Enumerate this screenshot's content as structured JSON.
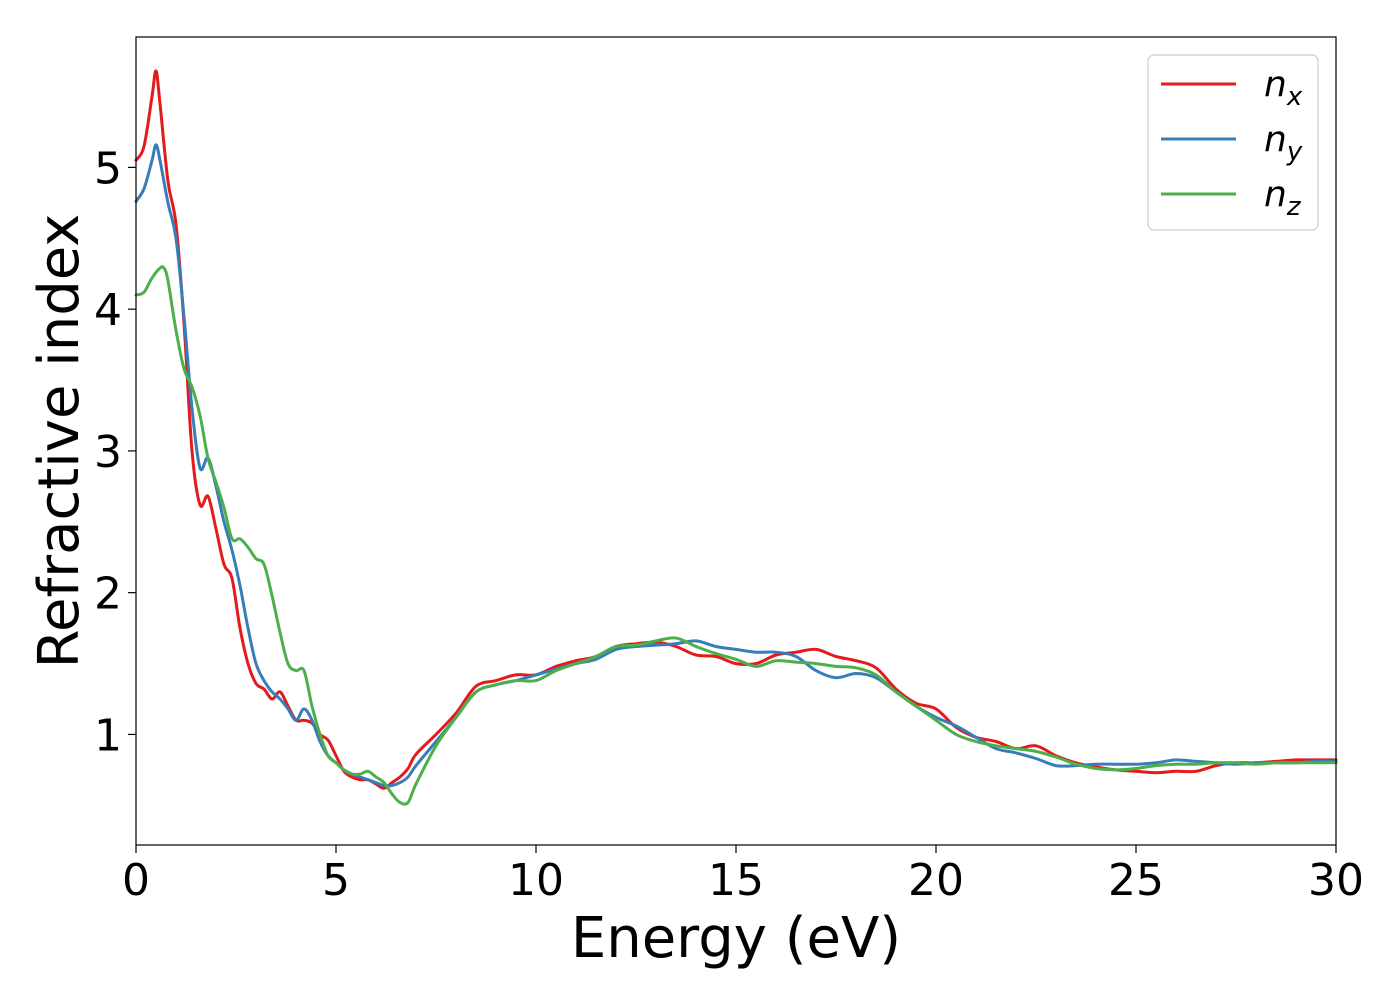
{
  "chart_data": {
    "type": "line",
    "xlabel": "Energy (eV)",
    "ylabel": "Refractive index",
    "xlim": [
      0,
      30
    ],
    "ylim": [
      0.22,
      5.92
    ],
    "xticks": [
      0,
      5,
      10,
      15,
      20,
      25,
      30
    ],
    "yticks": [
      1,
      2,
      3,
      4,
      5
    ],
    "grid": false,
    "legend": "top-right",
    "series": [
      {
        "name": "n_x",
        "label_base": "n",
        "label_sub": "x",
        "color": "#e41a1c",
        "points": [
          [
            0,
            5.05
          ],
          [
            0.2,
            5.15
          ],
          [
            0.4,
            5.5
          ],
          [
            0.5,
            5.68
          ],
          [
            0.6,
            5.45
          ],
          [
            0.8,
            4.9
          ],
          [
            1.0,
            4.6
          ],
          [
            1.2,
            3.9
          ],
          [
            1.4,
            3.0
          ],
          [
            1.6,
            2.62
          ],
          [
            1.8,
            2.68
          ],
          [
            2.0,
            2.45
          ],
          [
            2.2,
            2.2
          ],
          [
            2.4,
            2.1
          ],
          [
            2.6,
            1.75
          ],
          [
            2.8,
            1.5
          ],
          [
            3.0,
            1.36
          ],
          [
            3.2,
            1.32
          ],
          [
            3.4,
            1.25
          ],
          [
            3.6,
            1.3
          ],
          [
            3.8,
            1.2
          ],
          [
            4.0,
            1.1
          ],
          [
            4.2,
            1.1
          ],
          [
            4.4,
            1.08
          ],
          [
            4.6,
            1.0
          ],
          [
            4.8,
            0.96
          ],
          [
            5.0,
            0.85
          ],
          [
            5.2,
            0.74
          ],
          [
            5.4,
            0.7
          ],
          [
            5.6,
            0.68
          ],
          [
            5.8,
            0.68
          ],
          [
            6.0,
            0.65
          ],
          [
            6.2,
            0.62
          ],
          [
            6.4,
            0.66
          ],
          [
            6.6,
            0.7
          ],
          [
            6.8,
            0.76
          ],
          [
            7.0,
            0.86
          ],
          [
            7.5,
            1.0
          ],
          [
            8.0,
            1.15
          ],
          [
            8.5,
            1.34
          ],
          [
            9.0,
            1.38
          ],
          [
            9.5,
            1.42
          ],
          [
            10.0,
            1.42
          ],
          [
            10.5,
            1.48
          ],
          [
            11.0,
            1.52
          ],
          [
            11.5,
            1.55
          ],
          [
            12.0,
            1.62
          ],
          [
            12.5,
            1.64
          ],
          [
            13.0,
            1.65
          ],
          [
            13.5,
            1.62
          ],
          [
            14.0,
            1.56
          ],
          [
            14.5,
            1.55
          ],
          [
            15.0,
            1.5
          ],
          [
            15.5,
            1.5
          ],
          [
            16.0,
            1.56
          ],
          [
            16.5,
            1.58
          ],
          [
            17.0,
            1.6
          ],
          [
            17.5,
            1.55
          ],
          [
            18.0,
            1.52
          ],
          [
            18.5,
            1.47
          ],
          [
            19.0,
            1.32
          ],
          [
            19.5,
            1.22
          ],
          [
            20.0,
            1.18
          ],
          [
            20.5,
            1.05
          ],
          [
            21.0,
            0.98
          ],
          [
            21.5,
            0.95
          ],
          [
            22.0,
            0.9
          ],
          [
            22.5,
            0.92
          ],
          [
            23.0,
            0.85
          ],
          [
            23.5,
            0.8
          ],
          [
            24.0,
            0.77
          ],
          [
            24.5,
            0.75
          ],
          [
            25.0,
            0.74
          ],
          [
            25.5,
            0.73
          ],
          [
            26.0,
            0.74
          ],
          [
            26.5,
            0.74
          ],
          [
            27.0,
            0.78
          ],
          [
            27.5,
            0.8
          ],
          [
            28.0,
            0.8
          ],
          [
            28.5,
            0.81
          ],
          [
            29.0,
            0.82
          ],
          [
            29.5,
            0.82
          ],
          [
            30.0,
            0.82
          ]
        ]
      },
      {
        "name": "n_y",
        "label_base": "n",
        "label_sub": "y",
        "color": "#377eb8",
        "points": [
          [
            0,
            4.76
          ],
          [
            0.2,
            4.85
          ],
          [
            0.4,
            5.05
          ],
          [
            0.5,
            5.16
          ],
          [
            0.6,
            5.05
          ],
          [
            0.8,
            4.75
          ],
          [
            1.0,
            4.5
          ],
          [
            1.2,
            3.95
          ],
          [
            1.4,
            3.3
          ],
          [
            1.6,
            2.88
          ],
          [
            1.8,
            2.95
          ],
          [
            2.0,
            2.75
          ],
          [
            2.2,
            2.5
          ],
          [
            2.4,
            2.3
          ],
          [
            2.6,
            2.05
          ],
          [
            2.8,
            1.75
          ],
          [
            3.0,
            1.5
          ],
          [
            3.2,
            1.38
          ],
          [
            3.4,
            1.3
          ],
          [
            3.6,
            1.25
          ],
          [
            3.8,
            1.18
          ],
          [
            4.0,
            1.1
          ],
          [
            4.2,
            1.18
          ],
          [
            4.4,
            1.1
          ],
          [
            4.6,
            0.95
          ],
          [
            4.8,
            0.85
          ],
          [
            5.0,
            0.8
          ],
          [
            5.2,
            0.75
          ],
          [
            5.4,
            0.72
          ],
          [
            5.6,
            0.7
          ],
          [
            5.8,
            0.68
          ],
          [
            6.0,
            0.66
          ],
          [
            6.2,
            0.64
          ],
          [
            6.4,
            0.64
          ],
          [
            6.6,
            0.66
          ],
          [
            6.8,
            0.7
          ],
          [
            7.0,
            0.78
          ],
          [
            7.5,
            0.95
          ],
          [
            8.0,
            1.12
          ],
          [
            8.5,
            1.3
          ],
          [
            9.0,
            1.35
          ],
          [
            9.5,
            1.38
          ],
          [
            10.0,
            1.42
          ],
          [
            10.5,
            1.46
          ],
          [
            11.0,
            1.5
          ],
          [
            11.5,
            1.53
          ],
          [
            12.0,
            1.6
          ],
          [
            12.5,
            1.62
          ],
          [
            13.0,
            1.63
          ],
          [
            13.5,
            1.64
          ],
          [
            14.0,
            1.66
          ],
          [
            14.5,
            1.62
          ],
          [
            15.0,
            1.6
          ],
          [
            15.5,
            1.58
          ],
          [
            16.0,
            1.58
          ],
          [
            16.5,
            1.55
          ],
          [
            17.0,
            1.45
          ],
          [
            17.5,
            1.4
          ],
          [
            18.0,
            1.43
          ],
          [
            18.5,
            1.4
          ],
          [
            19.0,
            1.3
          ],
          [
            19.5,
            1.2
          ],
          [
            20.0,
            1.12
          ],
          [
            20.5,
            1.06
          ],
          [
            21.0,
            0.98
          ],
          [
            21.5,
            0.9
          ],
          [
            22.0,
            0.87
          ],
          [
            22.5,
            0.83
          ],
          [
            23.0,
            0.78
          ],
          [
            23.5,
            0.78
          ],
          [
            24.0,
            0.79
          ],
          [
            24.5,
            0.79
          ],
          [
            25.0,
            0.79
          ],
          [
            25.5,
            0.8
          ],
          [
            26.0,
            0.82
          ],
          [
            26.5,
            0.81
          ],
          [
            27.0,
            0.8
          ],
          [
            27.5,
            0.79
          ],
          [
            28.0,
            0.8
          ],
          [
            28.5,
            0.8
          ],
          [
            29.0,
            0.8
          ],
          [
            29.5,
            0.81
          ],
          [
            30.0,
            0.81
          ]
        ]
      },
      {
        "name": "n_z",
        "label_base": "n",
        "label_sub": "z",
        "color": "#4daf4a",
        "points": [
          [
            0,
            4.1
          ],
          [
            0.2,
            4.12
          ],
          [
            0.4,
            4.22
          ],
          [
            0.6,
            4.29
          ],
          [
            0.7,
            4.29
          ],
          [
            0.8,
            4.2
          ],
          [
            1.0,
            3.85
          ],
          [
            1.2,
            3.58
          ],
          [
            1.4,
            3.45
          ],
          [
            1.6,
            3.25
          ],
          [
            1.8,
            2.95
          ],
          [
            2.0,
            2.78
          ],
          [
            2.2,
            2.6
          ],
          [
            2.4,
            2.38
          ],
          [
            2.6,
            2.38
          ],
          [
            2.8,
            2.32
          ],
          [
            3.0,
            2.24
          ],
          [
            3.2,
            2.2
          ],
          [
            3.4,
            1.98
          ],
          [
            3.6,
            1.72
          ],
          [
            3.8,
            1.5
          ],
          [
            4.0,
            1.45
          ],
          [
            4.2,
            1.45
          ],
          [
            4.4,
            1.2
          ],
          [
            4.6,
            1.0
          ],
          [
            4.8,
            0.85
          ],
          [
            5.0,
            0.8
          ],
          [
            5.2,
            0.75
          ],
          [
            5.4,
            0.72
          ],
          [
            5.6,
            0.72
          ],
          [
            5.8,
            0.74
          ],
          [
            6.0,
            0.7
          ],
          [
            6.2,
            0.66
          ],
          [
            6.4,
            0.58
          ],
          [
            6.6,
            0.52
          ],
          [
            6.8,
            0.52
          ],
          [
            7.0,
            0.65
          ],
          [
            7.5,
            0.92
          ],
          [
            8.0,
            1.12
          ],
          [
            8.5,
            1.3
          ],
          [
            9.0,
            1.35
          ],
          [
            9.5,
            1.38
          ],
          [
            10.0,
            1.38
          ],
          [
            10.5,
            1.45
          ],
          [
            11.0,
            1.5
          ],
          [
            11.5,
            1.55
          ],
          [
            12.0,
            1.62
          ],
          [
            12.5,
            1.63
          ],
          [
            13.0,
            1.66
          ],
          [
            13.5,
            1.68
          ],
          [
            14.0,
            1.62
          ],
          [
            14.5,
            1.57
          ],
          [
            15.0,
            1.53
          ],
          [
            15.5,
            1.48
          ],
          [
            16.0,
            1.52
          ],
          [
            16.5,
            1.51
          ],
          [
            17.0,
            1.5
          ],
          [
            17.5,
            1.48
          ],
          [
            18.0,
            1.47
          ],
          [
            18.5,
            1.42
          ],
          [
            19.0,
            1.3
          ],
          [
            19.5,
            1.2
          ],
          [
            20.0,
            1.1
          ],
          [
            20.5,
            1.0
          ],
          [
            21.0,
            0.95
          ],
          [
            21.5,
            0.92
          ],
          [
            22.0,
            0.9
          ],
          [
            22.5,
            0.88
          ],
          [
            23.0,
            0.84
          ],
          [
            23.5,
            0.79
          ],
          [
            24.0,
            0.76
          ],
          [
            24.5,
            0.75
          ],
          [
            25.0,
            0.76
          ],
          [
            25.5,
            0.78
          ],
          [
            26.0,
            0.79
          ],
          [
            26.5,
            0.79
          ],
          [
            27.0,
            0.8
          ],
          [
            27.5,
            0.8
          ],
          [
            28.0,
            0.79
          ],
          [
            28.5,
            0.8
          ],
          [
            29.0,
            0.8
          ],
          [
            29.5,
            0.8
          ],
          [
            30.0,
            0.8
          ]
        ]
      }
    ]
  }
}
